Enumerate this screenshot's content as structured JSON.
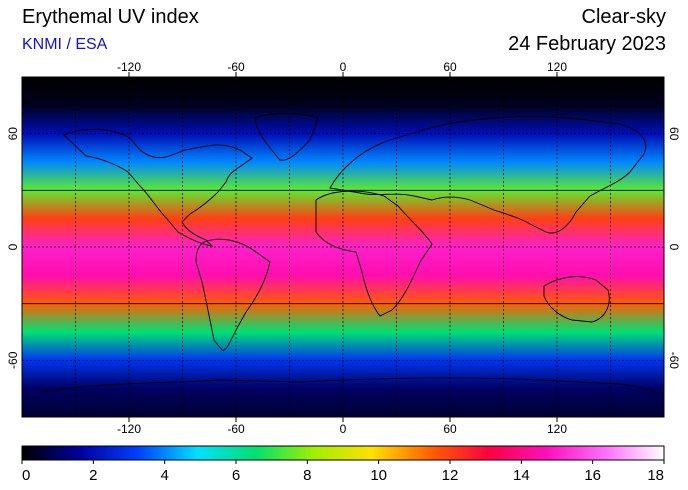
{
  "header": {
    "title": "Erythemal UV index",
    "credit": "KNMI / ESA",
    "sky_condition": "Clear-sky",
    "date": "24 February 2023"
  },
  "map": {
    "projection": "equirectangular",
    "lon_range": [
      -180,
      180
    ],
    "lat_range": [
      -90,
      90
    ],
    "lon_ticks": [
      -120,
      -60,
      0,
      60,
      120
    ],
    "lat_ticks": [
      60,
      0,
      -60
    ],
    "lon_tick_labels": [
      "-120",
      "-60",
      "0",
      "60",
      "120"
    ],
    "lat_tick_labels": [
      "60",
      "0",
      "-60"
    ],
    "grid_lon_step": 30,
    "grid_lat_step": 30,
    "tropic_lines_lat": [
      30,
      -30
    ]
  },
  "colorbar": {
    "min": 0,
    "max": 18,
    "tick_labels": [
      "0",
      "2",
      "4",
      "6",
      "8",
      "10",
      "12",
      "14",
      "16",
      "18"
    ],
    "colors": [
      "#000000",
      "#0000a0",
      "#0040ff",
      "#00e0ff",
      "#00e070",
      "#a0f000",
      "#ffe000",
      "#ff6000",
      "#ff0040",
      "#ff10c0",
      "#ff70ff",
      "#ffffff"
    ]
  },
  "uv_profile": {
    "lat": [
      90,
      75,
      60,
      45,
      30,
      15,
      0,
      -15,
      -30,
      -45,
      -60,
      -75,
      -90
    ],
    "uv": [
      0,
      0.3,
      2,
      4,
      7.5,
      12,
      15,
      14.5,
      11.5,
      6.5,
      3,
      1,
      0.5
    ]
  }
}
